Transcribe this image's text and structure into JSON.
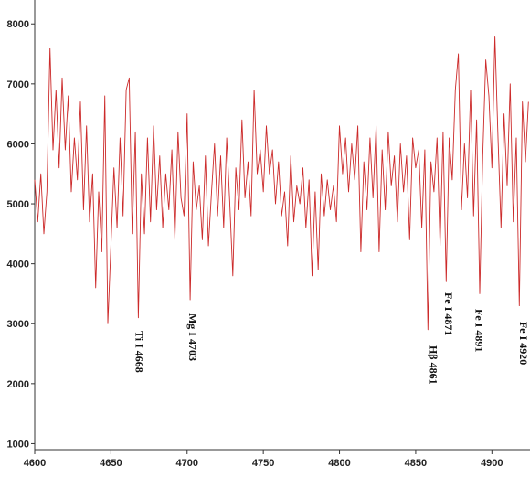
{
  "chart_data": {
    "type": "line",
    "title": "",
    "xlabel": "",
    "ylabel": "",
    "xlim": [
      4600,
      4925
    ],
    "ylim": [
      900,
      8400
    ],
    "x_ticks": [
      "4600",
      "4650",
      "4700",
      "4750",
      "4800",
      "4850",
      "4900"
    ],
    "x_tick_values": [
      4600,
      4650,
      4700,
      4750,
      4800,
      4850,
      4900
    ],
    "y_ticks": [
      "1000",
      "2000",
      "3000",
      "4000",
      "5000",
      "6000",
      "7000",
      "8000"
    ],
    "y_tick_values": [
      1000,
      2000,
      3000,
      4000,
      5000,
      6000,
      7000,
      8000
    ],
    "grid": false,
    "line_color": "#cc2a2a",
    "series": [
      {
        "x": [
          4600,
          4602,
          4604,
          4606,
          4608,
          4610,
          4612,
          4614,
          4616,
          4618,
          4620,
          4622,
          4624,
          4626,
          4628,
          4630,
          4632,
          4634,
          4636,
          4638,
          4640,
          4642,
          4644,
          4646,
          4648,
          4650,
          4652,
          4654,
          4656,
          4658,
          4660,
          4662,
          4664,
          4666,
          4668,
          4670,
          4672,
          4674,
          4676,
          4678,
          4680,
          4682,
          4684,
          4686,
          4688,
          4690,
          4692,
          4694,
          4696,
          4698,
          4700,
          4702,
          4704,
          4706,
          4708,
          4710,
          4712,
          4714,
          4716,
          4718,
          4720,
          4722,
          4724,
          4726,
          4728,
          4730,
          4732,
          4734,
          4736,
          4738,
          4740,
          4742,
          4744,
          4746,
          4748,
          4750,
          4752,
          4754,
          4756,
          4758,
          4760,
          4762,
          4764,
          4766,
          4768,
          4770,
          4772,
          4774,
          4776,
          4778,
          4780,
          4782,
          4784,
          4786,
          4788,
          4790,
          4792,
          4794,
          4796,
          4798,
          4800,
          4802,
          4804,
          4806,
          4808,
          4810,
          4812,
          4814,
          4816,
          4818,
          4820,
          4822,
          4824,
          4826,
          4828,
          4830,
          4832,
          4834,
          4836,
          4838,
          4840,
          4842,
          4844,
          4846,
          4848,
          4850,
          4852,
          4854,
          4856,
          4858,
          4860,
          4862,
          4864,
          4866,
          4868,
          4870,
          4872,
          4874,
          4876,
          4878,
          4880,
          4882,
          4884,
          4886,
          4888,
          4890,
          4892,
          4894,
          4896,
          4898,
          4900,
          4902,
          4904,
          4906,
          4908,
          4910,
          4912,
          4914,
          4916,
          4918,
          4920,
          4922,
          4924
        ],
        "y": [
          5400,
          4700,
          5500,
          4500,
          5200,
          7600,
          5900,
          6900,
          5600,
          7100,
          5900,
          6800,
          5200,
          6100,
          5400,
          6700,
          4900,
          6300,
          4700,
          5500,
          3600,
          5200,
          4200,
          6800,
          3000,
          4300,
          5600,
          4600,
          6100,
          4800,
          6900,
          7100,
          4500,
          6200,
          3100,
          5500,
          4500,
          6100,
          4700,
          6300,
          4900,
          5800,
          4600,
          5500,
          4900,
          5900,
          4400,
          6200,
          5100,
          4800,
          6500,
          3400,
          5700,
          4900,
          5300,
          4400,
          5800,
          4300,
          5200,
          6000,
          4800,
          5800,
          4600,
          6100,
          5000,
          3800,
          5600,
          4900,
          6400,
          5100,
          5700,
          4800,
          6900,
          5500,
          5900,
          5200,
          6300,
          5500,
          5900,
          5000,
          5700,
          4800,
          5200,
          4300,
          5800,
          4700,
          5300,
          5000,
          5600,
          4600,
          5400,
          3800,
          5200,
          3900,
          5500,
          4800,
          5400,
          4900,
          5300,
          4700,
          6300,
          5500,
          6100,
          5200,
          6000,
          5400,
          6300,
          4200,
          5700,
          4900,
          6100,
          5100,
          6300,
          4200,
          5900,
          4900,
          6200,
          5300,
          5800,
          4700,
          6000,
          5200,
          5800,
          4400,
          6100,
          5600,
          5900,
          4600,
          5900,
          2900,
          5700,
          5200,
          6100,
          4300,
          6200,
          3700,
          6100,
          5400,
          6900,
          7500,
          4900,
          6000,
          5100,
          6900,
          4800,
          6400,
          3500,
          5800,
          7400,
          6800,
          5600,
          7800,
          6100,
          4600,
          6500,
          5300,
          7000,
          4700,
          6100,
          3300,
          6700,
          5700,
          6700
        ]
      }
    ],
    "annotations": [
      {
        "text": "Ti I 4668",
        "x": 4668
      },
      {
        "text": "Mg I 4703",
        "x": 4703
      },
      {
        "text": "Hβ 4861",
        "x": 4861
      },
      {
        "text": "Fe I 4871",
        "x": 4871
      },
      {
        "text": "Fe I 4891",
        "x": 4891
      },
      {
        "text": "Fe I 4920",
        "x": 4920
      }
    ]
  }
}
